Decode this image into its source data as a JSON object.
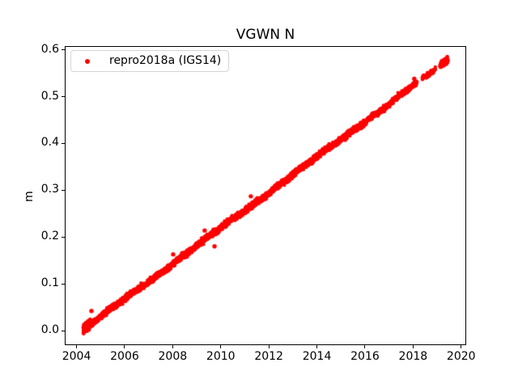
{
  "chart_data": {
    "type": "scatter",
    "title": "VGWN N",
    "xlabel": "",
    "ylabel": "m",
    "xlim": [
      2003.51,
      2020.21
    ],
    "ylim": [
      -0.031,
      0.608
    ],
    "xticks": [
      2004,
      2006,
      2008,
      2010,
      2012,
      2014,
      2016,
      2018,
      2020
    ],
    "xtick_labels": [
      "2004",
      "2006",
      "2008",
      "2010",
      "2012",
      "2014",
      "2016",
      "2018",
      "2020"
    ],
    "yticks": [
      0.0,
      0.1,
      0.2,
      0.3,
      0.4,
      0.5,
      0.6
    ],
    "ytick_labels": [
      "0.0",
      "0.1",
      "0.2",
      "0.3",
      "0.4",
      "0.5",
      "0.6"
    ],
    "grid": false,
    "legend": {
      "position": "upper-left",
      "entries": [
        {
          "label": "repro2018a (IGS14)",
          "marker": "dot",
          "color": "#ff0000"
        }
      ]
    },
    "series": [
      {
        "name": "repro2018a (IGS14)",
        "color": "#ff0000",
        "marker": ".",
        "marker_radius_px": 2.2,
        "seed": 42,
        "trend": {
          "x_start": 2004.28,
          "y_start": 0.002,
          "x_end": 2019.45,
          "y_end": 0.578,
          "slope_m_per_yr": 0.038
        },
        "wobble": [
          {
            "amp": 0.0015,
            "period": 4.3,
            "phase": 0.0
          },
          {
            "amp": 0.001,
            "period": 1.0,
            "phase": 1.3
          }
        ],
        "segments": [
          {
            "x0": 2004.28,
            "x1": 2004.55,
            "rate": 700,
            "sigma": 0.0045
          },
          {
            "x0": 2004.55,
            "x1": 2016.0,
            "rate": 330,
            "sigma": 0.0028
          },
          {
            "x0": 2016.0,
            "x1": 2018.16,
            "rate": 250,
            "sigma": 0.0026
          },
          {
            "x0": 2018.38,
            "x1": 2018.93,
            "rate": 150,
            "sigma": 0.0024
          },
          {
            "x0": 2019.12,
            "x1": 2019.45,
            "rate": 400,
            "sigma": 0.003
          }
        ],
        "gaps": [
          [
            2018.16,
            2018.38
          ],
          [
            2018.93,
            2019.12
          ]
        ],
        "outliers": [
          [
            2004.62,
            0.042
          ],
          [
            2008.02,
            0.163
          ],
          [
            2009.33,
            0.214
          ],
          [
            2009.74,
            0.18
          ],
          [
            2011.25,
            0.287
          ],
          [
            2018.05,
            0.538
          ]
        ]
      }
    ],
    "colors": {
      "background": "#ffffff",
      "spine": "#000000",
      "text": "#000000",
      "legend_border": "#d5d5d5"
    }
  }
}
